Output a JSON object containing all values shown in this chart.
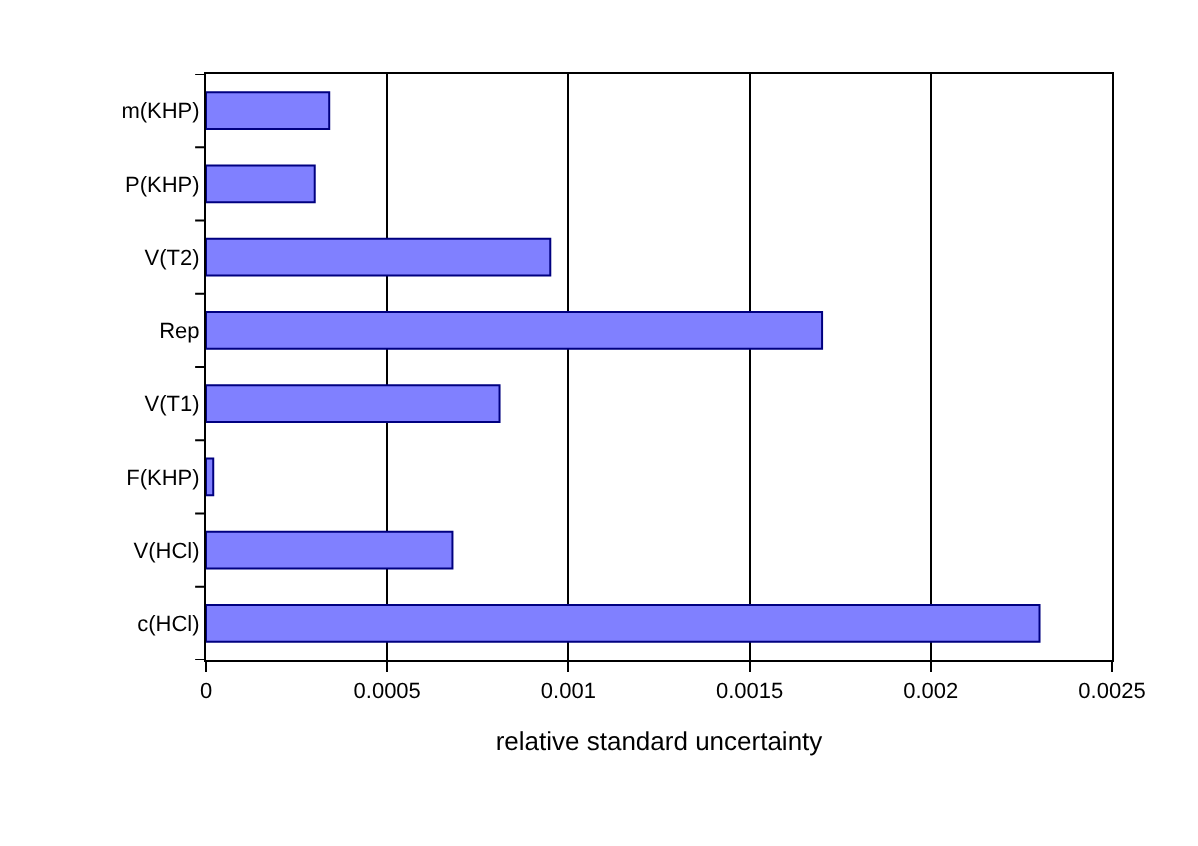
{
  "chart_data": {
    "type": "bar",
    "orientation": "horizontal",
    "xlabel": "relative standard uncertainty",
    "categories": [
      "m(KHP)",
      "P(KHP)",
      "V(T2)",
      "Rep",
      "V(T1)",
      "F(KHP)",
      "V(HCl)",
      "c(HCl)"
    ],
    "values": [
      0.00034,
      0.0003,
      0.00095,
      0.0017,
      0.00081,
      2e-05,
      0.00068,
      0.0023
    ],
    "color": "#8080ff",
    "xlim": [
      0,
      0.0025
    ],
    "xticks": [
      0,
      0.0005,
      0.001,
      0.0015,
      0.002,
      0.0025
    ],
    "grid": "x"
  }
}
